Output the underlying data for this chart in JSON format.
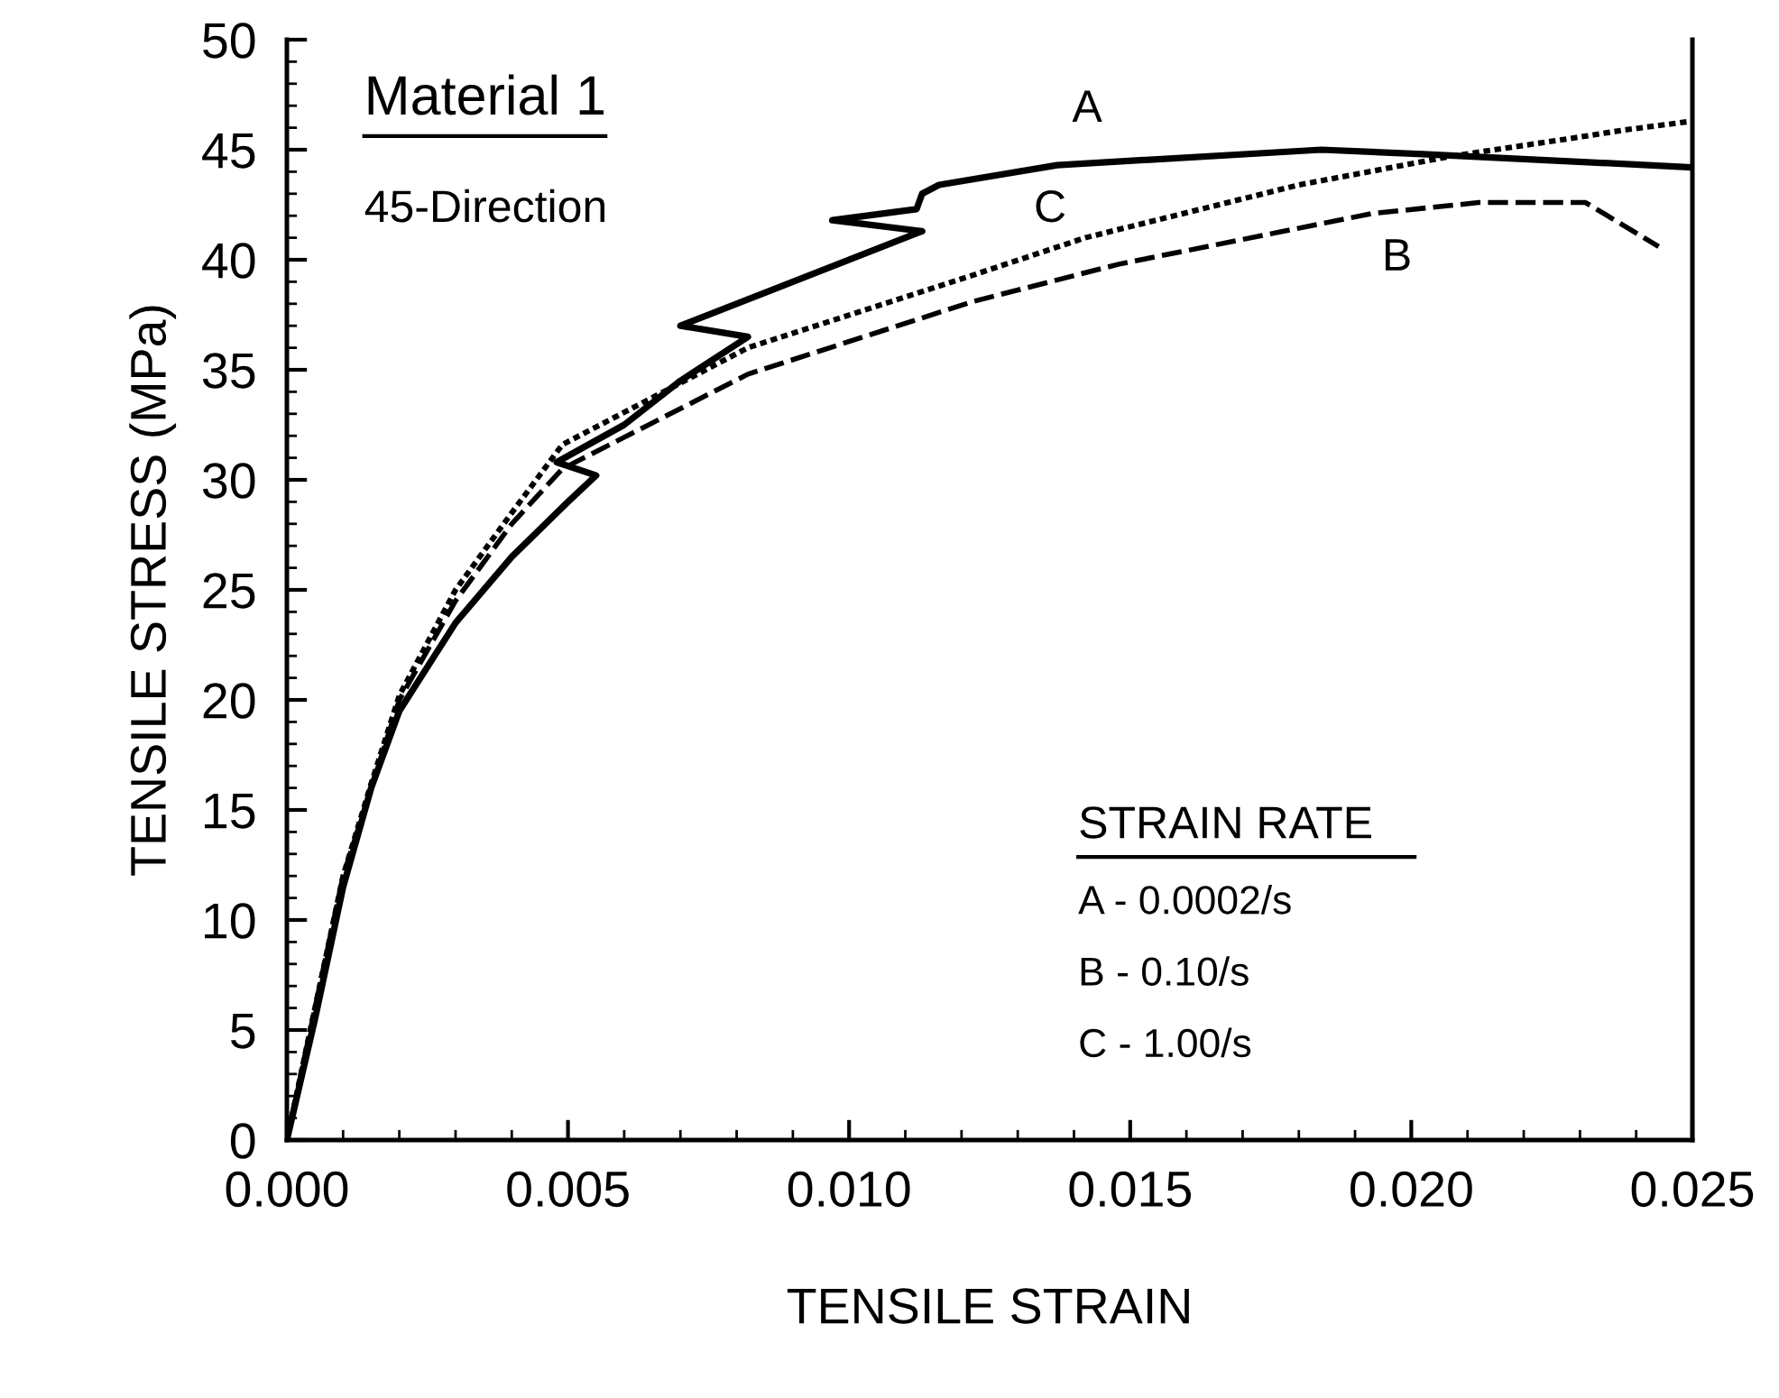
{
  "chart_data": {
    "type": "line",
    "xlabel": "TENSILE STRAIN",
    "ylabel": "TENSILE STRESS (MPa)",
    "xlim": [
      0,
      0.025
    ],
    "ylim": [
      0,
      50
    ],
    "xticks": [
      {
        "value": 0,
        "label": "0.000"
      },
      {
        "value": 0.005,
        "label": "0.005"
      },
      {
        "value": 0.01,
        "label": "0.010"
      },
      {
        "value": 0.015,
        "label": "0.015"
      },
      {
        "value": 0.02,
        "label": "0.020"
      },
      {
        "value": 0.025,
        "label": "0.025"
      }
    ],
    "yticks": [
      0,
      5,
      10,
      15,
      20,
      25,
      30,
      35,
      40,
      45,
      50
    ],
    "grid": false,
    "legend": false,
    "marker": "none",
    "series": [
      {
        "name": "A",
        "color": "#000000",
        "line_style": "solid",
        "x": [
          0,
          0.0005,
          0.001,
          0.0015,
          0.002,
          0.003,
          0.004,
          0.005,
          0.0055,
          0.0048,
          0.006,
          0.007,
          0.0082,
          0.007,
          0.0085,
          0.0113,
          0.0097,
          0.0112,
          0.0113,
          0.0116,
          0.0137,
          0.0184,
          0.0202,
          0.025
        ],
        "values": [
          0,
          5.5,
          11.5,
          16,
          19.5,
          23.5,
          26.5,
          29,
          30.2,
          30.8,
          32.5,
          34.5,
          36.5,
          37,
          38.5,
          41.3,
          41.8,
          42.3,
          43,
          43.4,
          44.3,
          45,
          44.8,
          44.2
        ]
      },
      {
        "name": "B",
        "color": "#000000",
        "line_style": "dashed",
        "x": [
          0,
          0.0005,
          0.001,
          0.0015,
          0.002,
          0.003,
          0.004,
          0.0049,
          0.0082,
          0.0122,
          0.0148,
          0.0193,
          0.0212,
          0.0231,
          0.0244
        ],
        "values": [
          0,
          6,
          12,
          16,
          20,
          24.5,
          28,
          30.5,
          34.8,
          38.1,
          39.8,
          42.1,
          42.6,
          42.6,
          40.6
        ]
      },
      {
        "name": "C",
        "color": "#000000",
        "line_style": "dotted",
        "x": [
          0,
          0.0005,
          0.001,
          0.0015,
          0.002,
          0.003,
          0.004,
          0.0049,
          0.0082,
          0.0122,
          0.0142,
          0.018,
          0.0207,
          0.0228,
          0.0238,
          0.025
        ],
        "values": [
          0,
          6,
          12,
          16.2,
          20.2,
          25,
          28.5,
          31.6,
          36,
          39.3,
          41,
          43.4,
          44.7,
          45.5,
          45.9,
          46.3
        ]
      }
    ],
    "title": "Material 1",
    "subtitle": "45-Direction",
    "legend_title": "STRAIN RATE",
    "annotations": [
      "A - 0.0002/s",
      "B - 0.10/s",
      "C - 1.00/s"
    ]
  }
}
